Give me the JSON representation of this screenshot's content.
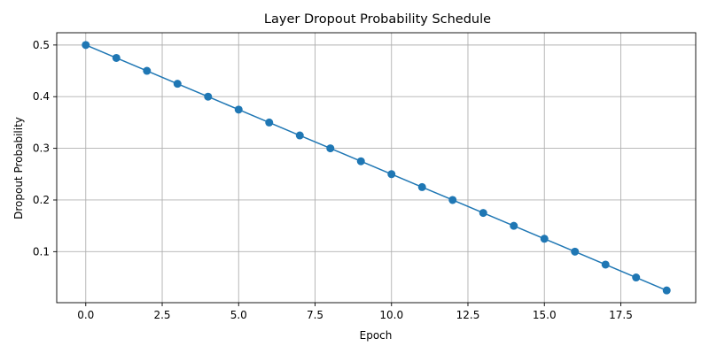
{
  "chart_data": {
    "type": "line",
    "title": "Layer Dropout Probability Schedule",
    "xlabel": "Epoch",
    "ylabel": "Dropout Probability",
    "xlim": [
      -0.95,
      19.95
    ],
    "ylim": [
      0.00125,
      0.52375
    ],
    "x_ticks": [
      0,
      2.5,
      5,
      7.5,
      10,
      12.5,
      15,
      17.5
    ],
    "x_tick_labels": [
      "0.0",
      "2.5",
      "5.0",
      "7.5",
      "10.0",
      "12.5",
      "15.0",
      "17.5"
    ],
    "y_ticks": [
      0.1,
      0.2,
      0.3,
      0.4,
      0.5
    ],
    "y_tick_labels": [
      "0.1",
      "0.2",
      "0.3",
      "0.4",
      "0.5"
    ],
    "grid": true,
    "series": [
      {
        "color": "#1f77b4",
        "marker": "circle",
        "x": [
          0,
          1,
          2,
          3,
          4,
          5,
          6,
          7,
          8,
          9,
          10,
          11,
          12,
          13,
          14,
          15,
          16,
          17,
          18,
          19
        ],
        "y": [
          0.5,
          0.475,
          0.45,
          0.425,
          0.4,
          0.375,
          0.35,
          0.325,
          0.3,
          0.275,
          0.25,
          0.225,
          0.2,
          0.175,
          0.15,
          0.125,
          0.1,
          0.075,
          0.05,
          0.025
        ]
      }
    ]
  }
}
